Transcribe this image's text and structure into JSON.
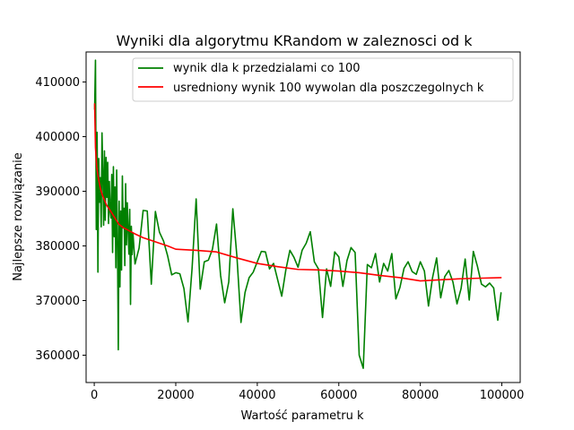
{
  "chart_data": {
    "type": "line",
    "title": "Wyniki dla algorytmu KRandom w zaleznosci od k",
    "xlabel": "Wartość parametru k",
    "ylabel": "Najlepsze rozwiązanie",
    "xlim": [
      -2000,
      104500
    ],
    "ylim": [
      355000,
      415500
    ],
    "xticks": [
      0,
      20000,
      40000,
      60000,
      80000,
      100000
    ],
    "yticks": [
      360000,
      370000,
      380000,
      390000,
      400000,
      410000
    ],
    "grid": false,
    "legend_position": "top-right",
    "series": [
      {
        "name": "wynik dla k przedzialami co 100",
        "color": "#008000",
        "points": [
          [
            100,
            405000
          ],
          [
            300,
            414000
          ],
          [
            500,
            383000
          ],
          [
            700,
            400800
          ],
          [
            900,
            375200
          ],
          [
            1100,
            396000
          ],
          [
            1300,
            388000
          ],
          [
            1500,
            392500
          ],
          [
            1700,
            383500
          ],
          [
            1900,
            400700
          ],
          [
            2100,
            393500
          ],
          [
            2300,
            383800
          ],
          [
            2500,
            397400
          ],
          [
            2700,
            384700
          ],
          [
            2900,
            396200
          ],
          [
            3100,
            388900
          ],
          [
            3300,
            395300
          ],
          [
            3500,
            384100
          ],
          [
            3700,
            391800
          ],
          [
            3900,
            386300
          ],
          [
            4100,
            385100
          ],
          [
            4300,
            393100
          ],
          [
            4500,
            378800
          ],
          [
            4700,
            394500
          ],
          [
            4900,
            381700
          ],
          [
            5100,
            390800
          ],
          [
            5300,
            376000
          ],
          [
            5500,
            393900
          ],
          [
            5700,
            380300
          ],
          [
            5900,
            361000
          ],
          [
            6100,
            388200
          ],
          [
            6300,
            372500
          ],
          [
            6500,
            386400
          ],
          [
            6700,
            375600
          ],
          [
            6900,
            392800
          ],
          [
            7100,
            383300
          ],
          [
            7300,
            386900
          ],
          [
            7500,
            376400
          ],
          [
            7700,
            391400
          ],
          [
            7900,
            380200
          ],
          [
            8100,
            387900
          ],
          [
            8300,
            383100
          ],
          [
            8500,
            378500
          ],
          [
            8700,
            386700
          ],
          [
            8900,
            369300
          ],
          [
            9100,
            383600
          ],
          [
            9300,
            378400
          ],
          [
            9500,
            382300
          ],
          [
            10000,
            376700
          ],
          [
            11000,
            379600
          ],
          [
            12000,
            386500
          ],
          [
            13000,
            386400
          ],
          [
            14000,
            373000
          ],
          [
            15000,
            386300
          ],
          [
            16000,
            382500
          ],
          [
            17000,
            380900
          ],
          [
            18000,
            378200
          ],
          [
            19000,
            374700
          ],
          [
            20000,
            375100
          ],
          [
            21000,
            374900
          ],
          [
            22000,
            372200
          ],
          [
            23000,
            366100
          ],
          [
            24000,
            375900
          ],
          [
            25000,
            388600
          ],
          [
            26000,
            372100
          ],
          [
            27000,
            377100
          ],
          [
            28000,
            377400
          ],
          [
            29000,
            379400
          ],
          [
            30000,
            384000
          ],
          [
            31000,
            374600
          ],
          [
            32000,
            369600
          ],
          [
            33000,
            373400
          ],
          [
            34000,
            386800
          ],
          [
            35000,
            378100
          ],
          [
            36000,
            366000
          ],
          [
            37000,
            371500
          ],
          [
            38000,
            374200
          ],
          [
            39000,
            375200
          ],
          [
            40000,
            377100
          ],
          [
            41000,
            379000
          ],
          [
            42000,
            378900
          ],
          [
            43000,
            375800
          ],
          [
            44000,
            376800
          ],
          [
            45000,
            373800
          ],
          [
            46000,
            370800
          ],
          [
            47000,
            375600
          ],
          [
            48000,
            379200
          ],
          [
            49000,
            377900
          ],
          [
            50000,
            376100
          ],
          [
            51000,
            379200
          ],
          [
            52000,
            380500
          ],
          [
            53000,
            382600
          ],
          [
            54000,
            377100
          ],
          [
            55000,
            375800
          ],
          [
            56000,
            366900
          ],
          [
            57000,
            375800
          ],
          [
            58000,
            372600
          ],
          [
            59000,
            378900
          ],
          [
            60000,
            378000
          ],
          [
            61000,
            372600
          ],
          [
            62000,
            377300
          ],
          [
            63000,
            379700
          ],
          [
            64000,
            378800
          ],
          [
            65000,
            360000
          ],
          [
            66000,
            357600
          ],
          [
            67000,
            376600
          ],
          [
            68000,
            376000
          ],
          [
            69000,
            378600
          ],
          [
            70000,
            373400
          ],
          [
            71000,
            376800
          ],
          [
            72000,
            375400
          ],
          [
            73000,
            378600
          ],
          [
            74000,
            370300
          ],
          [
            75000,
            372400
          ],
          [
            76000,
            375900
          ],
          [
            77000,
            377100
          ],
          [
            78000,
            375300
          ],
          [
            79000,
            374800
          ],
          [
            80000,
            377100
          ],
          [
            81000,
            375400
          ],
          [
            82000,
            369000
          ],
          [
            83000,
            374200
          ],
          [
            84000,
            377800
          ],
          [
            85000,
            370500
          ],
          [
            86000,
            374400
          ],
          [
            87000,
            375500
          ],
          [
            88000,
            373400
          ],
          [
            89000,
            369400
          ],
          [
            90000,
            372200
          ],
          [
            91000,
            377600
          ],
          [
            92000,
            370100
          ],
          [
            93000,
            379000
          ],
          [
            94000,
            376300
          ],
          [
            95000,
            373000
          ],
          [
            96000,
            372500
          ],
          [
            97000,
            373200
          ],
          [
            98000,
            372300
          ],
          [
            99000,
            366400
          ],
          [
            99800,
            371400
          ]
        ]
      },
      {
        "name": "usredniony wynik 100 wywolan dla poszczegolnych k",
        "color": "#ff0000",
        "points": [
          [
            100,
            406000
          ],
          [
            300,
            398000
          ],
          [
            600,
            394500
          ],
          [
            1000,
            392500
          ],
          [
            1500,
            390500
          ],
          [
            2000,
            389300
          ],
          [
            3000,
            387500
          ],
          [
            4000,
            386400
          ],
          [
            5000,
            385200
          ],
          [
            6000,
            384000
          ],
          [
            7000,
            383400
          ],
          [
            8000,
            383000
          ],
          [
            9000,
            382600
          ],
          [
            10000,
            382200
          ],
          [
            12000,
            381500
          ],
          [
            14000,
            381000
          ],
          [
            16000,
            380500
          ],
          [
            18000,
            380000
          ],
          [
            20000,
            379400
          ],
          [
            25000,
            379200
          ],
          [
            30000,
            378900
          ],
          [
            35000,
            377800
          ],
          [
            40000,
            376800
          ],
          [
            45000,
            376200
          ],
          [
            50000,
            375700
          ],
          [
            55000,
            375600
          ],
          [
            60000,
            375400
          ],
          [
            65000,
            375100
          ],
          [
            70000,
            374600
          ],
          [
            75000,
            374200
          ],
          [
            80000,
            373600
          ],
          [
            85000,
            373800
          ],
          [
            90000,
            374000
          ],
          [
            95000,
            374100
          ],
          [
            99800,
            374200
          ]
        ]
      }
    ]
  }
}
